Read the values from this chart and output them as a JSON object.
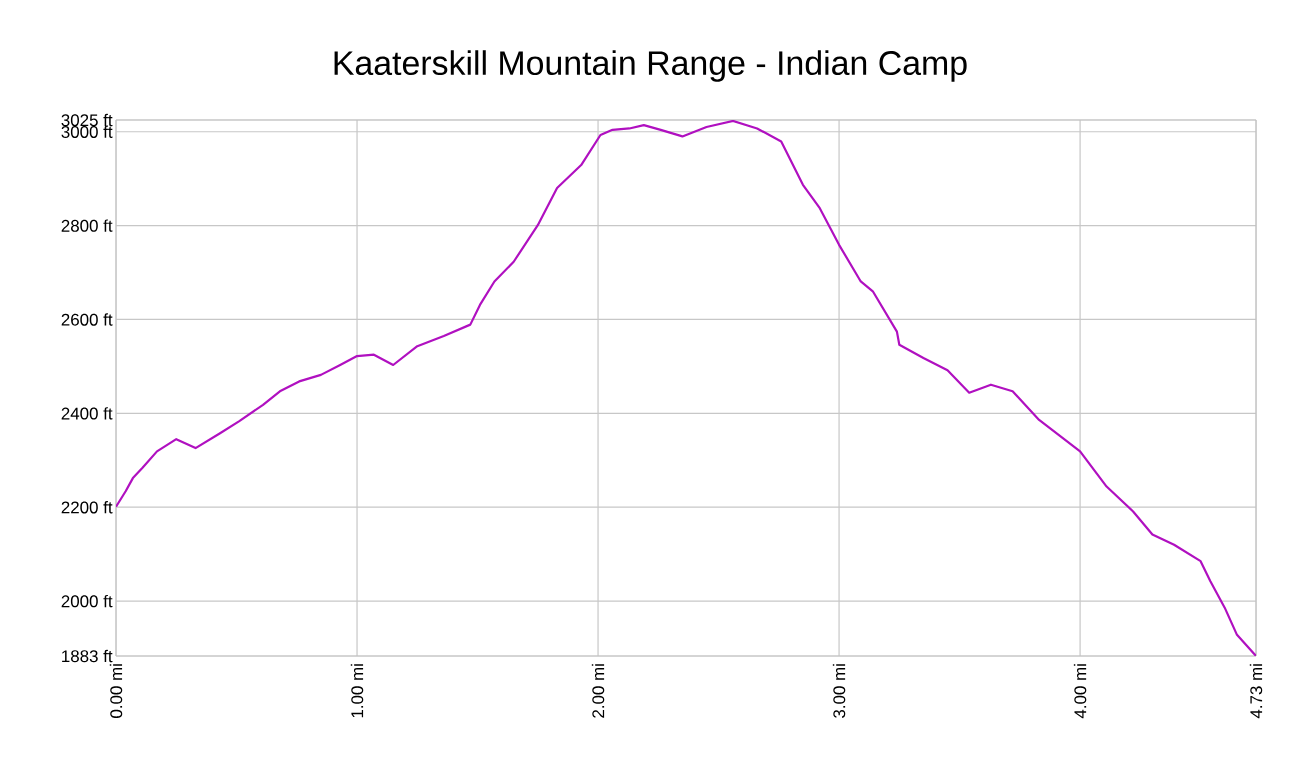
{
  "chart_data": {
    "type": "line",
    "title": "Kaaterskill Mountain Range - Indian Camp",
    "x": [
      0,
      0.04,
      0.07,
      0.11,
      0.17,
      0.25,
      0.33,
      0.43,
      0.51,
      0.61,
      0.68,
      0.76,
      0.85,
      0.93,
      1.0,
      1.07,
      1.15,
      1.25,
      1.36,
      1.47,
      1.51,
      1.57,
      1.65,
      1.75,
      1.83,
      1.93,
      2.01,
      2.06,
      2.13,
      2.19,
      2.26,
      2.35,
      2.45,
      2.56,
      2.66,
      2.76,
      2.85,
      2.92,
      3.0,
      3.09,
      3.14,
      3.24,
      3.25,
      3.35,
      3.45,
      3.54,
      3.63,
      3.72,
      3.83,
      4.0,
      4.11,
      4.22,
      4.3,
      4.39,
      4.5,
      4.54,
      4.6,
      4.65,
      4.73
    ],
    "series": [
      {
        "color": "#b010c0",
        "values": [
          2201,
          2234,
          2262,
          2284,
          2319,
          2345,
          2326,
          2357,
          2383,
          2418,
          2447,
          2468,
          2482,
          2503,
          2522,
          2525,
          2503,
          2543,
          2565,
          2589,
          2631,
          2681,
          2723,
          2801,
          2880,
          2929,
          2993,
          3004,
          3007,
          3014,
          3004,
          2990,
          3010,
          3023,
          3007,
          2979,
          2887,
          2837,
          2759,
          2681,
          2660,
          2574,
          2546,
          2518,
          2492,
          2444,
          2461,
          2447,
          2386,
          2319,
          2244,
          2191,
          2142,
          2120,
          2085,
          2043,
          1986,
          1929,
          1883
        ]
      }
    ],
    "xlim": [
      0,
      4.73
    ],
    "ylim": [
      1883,
      3025
    ],
    "xticks": [
      {
        "value": 0,
        "label": "0.00 mi"
      },
      {
        "value": 1,
        "label": "1.00 mi"
      },
      {
        "value": 2,
        "label": "2.00 mi"
      },
      {
        "value": 3,
        "label": "3.00 mi"
      },
      {
        "value": 4,
        "label": "4.00 mi"
      },
      {
        "value": 4.73,
        "label": "4.73 mi"
      }
    ],
    "yticks": [
      {
        "value": 1883,
        "label": "1883 ft"
      },
      {
        "value": 2000,
        "label": "2000 ft"
      },
      {
        "value": 2200,
        "label": "2200 ft"
      },
      {
        "value": 2400,
        "label": "2400 ft"
      },
      {
        "value": 2600,
        "label": "2600 ft"
      },
      {
        "value": 2800,
        "label": "2800 ft"
      },
      {
        "value": 3000,
        "label": "3000 ft"
      },
      {
        "value": 3025,
        "label": "3025 ft"
      }
    ],
    "grid": true,
    "marker": "none",
    "line_style": "solid"
  }
}
